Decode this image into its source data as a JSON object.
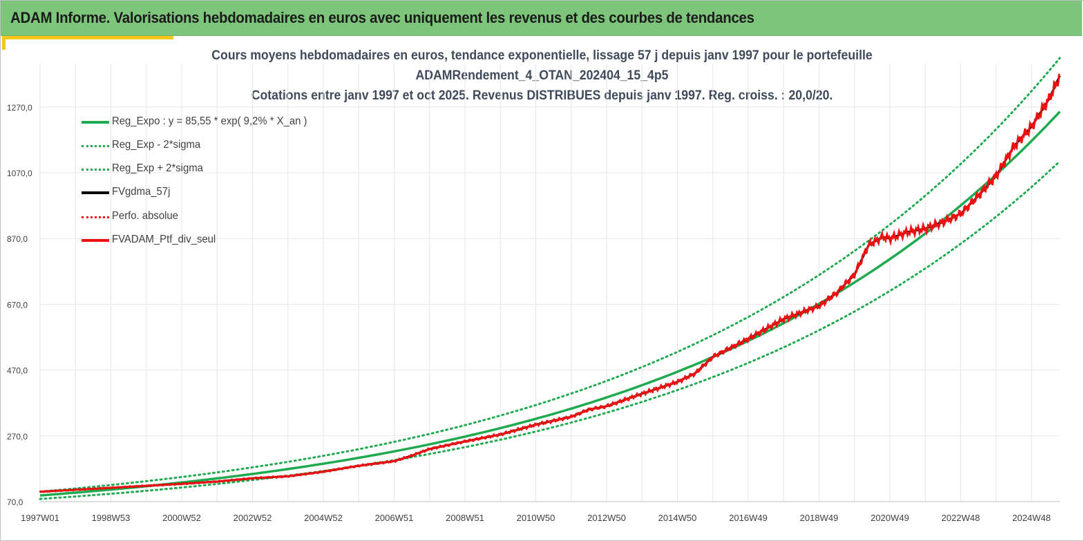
{
  "page": {
    "title": "ADAM Informe. Valorisations hebdomadaires en euros avec uniquement les revenus et des courbes de tendances"
  },
  "colors": {
    "header_bg": "#7cc57a",
    "accent": "#f5c518",
    "reg_green": "#1faa50",
    "series_red": "#ee1111",
    "series_black": "#000000"
  },
  "chart_data": {
    "type": "line",
    "title_lines": [
      "Cours moyens hebdomadaires  en euros, tendance exponentielle, lissage 57 j depuis janv 1997 pour le portefeuille",
      "ADAMRendement_4_OTAN_202404_15_4p5",
      "Cotations  entre janv 1997 et oct 2025. Revenus DISTRIBUES depuis janv 1997. Reg. croiss. : 20,0/20."
    ],
    "ylim": [
      70,
      1400
    ],
    "xlim": [
      1997.0,
      2025.8
    ],
    "y_ticks": [
      {
        "value": 70,
        "label": "70,0"
      },
      {
        "value": 270,
        "label": "270,0"
      },
      {
        "value": 470,
        "label": "470,0"
      },
      {
        "value": 670,
        "label": "670,0"
      },
      {
        "value": 870,
        "label": "870,0"
      },
      {
        "value": 1070,
        "label": "1070,0"
      },
      {
        "value": 1270,
        "label": "1270,0"
      }
    ],
    "x_ticks": [
      {
        "value": 1997.0,
        "label": "1997W01"
      },
      {
        "value": 1999.0,
        "label": "1998W53"
      },
      {
        "value": 2001.0,
        "label": "2000W52"
      },
      {
        "value": 2003.0,
        "label": "2002W52"
      },
      {
        "value": 2005.0,
        "label": "2004W52"
      },
      {
        "value": 2007.0,
        "label": "2006W51"
      },
      {
        "value": 2009.0,
        "label": "2008W51"
      },
      {
        "value": 2011.0,
        "label": "2010W50"
      },
      {
        "value": 2013.0,
        "label": "2012W50"
      },
      {
        "value": 2015.0,
        "label": "2014W50"
      },
      {
        "value": 2017.0,
        "label": "2016W49"
      },
      {
        "value": 2019.0,
        "label": "2018W49"
      },
      {
        "value": 2021.0,
        "label": "2020W49"
      },
      {
        "value": 2023.0,
        "label": "2022W48"
      },
      {
        "value": 2025.0,
        "label": "2024W48"
      }
    ],
    "grid": true,
    "legend_position": "top-left",
    "regression": {
      "a": 85.55,
      "rate": 0.092,
      "sigma_factor_low": 0.88,
      "sigma_factor_high": 1.13
    },
    "series": [
      {
        "name": "Reg_Expo : y = 85,55 * exp( 9,2% *  X_an )",
        "style": "solid",
        "color": "#1faa50",
        "kind": "reg"
      },
      {
        "name": "Reg_Exp - 2*sigma",
        "style": "dotted",
        "color": "#1faa50",
        "kind": "reg_low"
      },
      {
        "name": "Reg_Exp + 2*sigma",
        "style": "dotted",
        "color": "#1faa50",
        "kind": "reg_high"
      },
      {
        "name": "FVgdma_57j",
        "style": "solid",
        "color": "#000000",
        "kind": "data"
      },
      {
        "name": "Perfo. absolue",
        "style": "dotted",
        "color": "#ee1111",
        "kind": "legend_only"
      },
      {
        "name": "FVADAM_Ptf_div_seul",
        "style": "solid",
        "color": "#ee1111",
        "kind": "data"
      }
    ],
    "x": [
      1997.0,
      1998.0,
      1999.0,
      2000.0,
      2001.0,
      2002.0,
      2003.0,
      2004.0,
      2005.0,
      2006.0,
      2007.0,
      2007.5,
      2008.0,
      2009.0,
      2010.0,
      2011.0,
      2012.0,
      2012.5,
      2013.0,
      2014.0,
      2015.0,
      2015.5,
      2016.0,
      2017.0,
      2018.0,
      2019.0,
      2019.5,
      2020.0,
      2020.4,
      2020.8,
      2021.0,
      2021.5,
      2022.0,
      2022.5,
      2023.0,
      2023.5,
      2024.0,
      2024.5,
      2025.0,
      2025.5,
      2025.8
    ],
    "values": [
      100,
      106,
      112,
      118,
      124,
      131,
      141,
      147,
      161,
      179,
      193,
      210,
      230,
      253,
      274,
      304,
      328,
      350,
      360,
      398,
      434,
      460,
      510,
      565,
      625,
      665,
      705,
      760,
      850,
      875,
      870,
      890,
      900,
      920,
      945,
      1000,
      1060,
      1150,
      1210,
      1295,
      1365
    ]
  }
}
